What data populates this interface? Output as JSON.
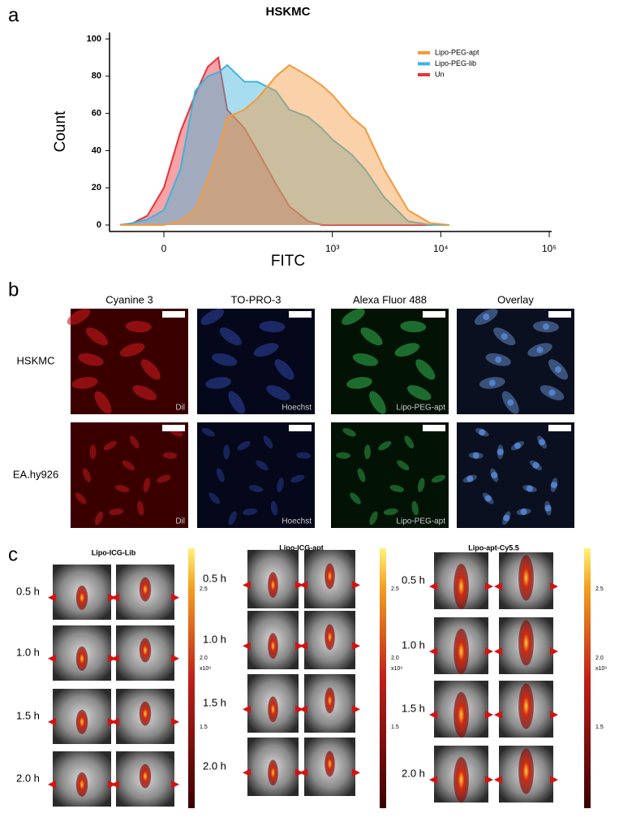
{
  "chart_data": {
    "type": "area",
    "panel_label": "a",
    "title": "HSKMC",
    "x_label": "FITC",
    "y_label": "Count",
    "xscale": "logicle",
    "x": [
      -60,
      -40,
      -20,
      0,
      20,
      40,
      60,
      80,
      100,
      150,
      200,
      300,
      400,
      600,
      800,
      1000,
      1500,
      2000,
      3000,
      5000,
      8000,
      12000
    ],
    "series": [
      {
        "name": "Lipo-PEG-apt",
        "color": "#f39a3d",
        "values": [
          0,
          0,
          0,
          0,
          2,
          8,
          25,
          40,
          58,
          62,
          68,
          80,
          86,
          80,
          75,
          70,
          58,
          52,
          30,
          8,
          1,
          0
        ]
      },
      {
        "name": "Lipo-PEG-lib",
        "color": "#3fb3dc",
        "values": [
          0,
          1,
          3,
          8,
          30,
          72,
          80,
          82,
          86,
          77,
          77,
          72,
          62,
          58,
          52,
          46,
          38,
          30,
          15,
          2,
          0,
          0
        ]
      },
      {
        "name": "Un",
        "color": "#e8333a",
        "values": [
          0,
          1,
          5,
          20,
          50,
          70,
          85,
          90,
          62,
          52,
          40,
          22,
          10,
          2,
          0,
          0,
          0,
          0,
          0,
          0,
          0,
          0
        ]
      }
    ],
    "xlim": [
      -80,
      100000
    ],
    "ylim": [
      0,
      100
    ],
    "xticks": [
      0,
      {
        "value": 1000,
        "label": "10³"
      },
      {
        "value": 10000,
        "label": "10⁴"
      },
      {
        "value": 100000,
        "label": "10⁵"
      }
    ],
    "yticks": [
      0,
      20,
      40,
      60,
      80,
      100
    ],
    "legend": "upper right"
  },
  "panel_b": {
    "panel_label": "b",
    "columns": [
      "Cyanine 3",
      "TO-PRO-3",
      "Alexa Fluor 488",
      "Overlay"
    ],
    "rows": [
      "HSKMC",
      "EA.hy926"
    ],
    "captions": [
      "Dil",
      "Hoechst",
      "Lipo-PEG-apt"
    ]
  },
  "panel_c": {
    "panel_label": "c",
    "groups": [
      {
        "title": "Lipo-ICG-Lib",
        "times": [
          "0.5 h",
          "1.0 h",
          "1.5 h",
          "2.0 h"
        ],
        "colorbar": [
          "2.5",
          "2.0",
          "1.5"
        ],
        "unit": "x10⁹"
      },
      {
        "title": "Lipo-ICG-apt",
        "times": [
          "0.5 h",
          "1.0 h",
          "1.5 h",
          "2.0 h"
        ],
        "colorbar": [
          "2.5",
          "2.0",
          "1.5"
        ],
        "unit": "x10⁹"
      },
      {
        "title": "Lipo-apt-Cy5.5",
        "times": [
          "0.5 h",
          "1.0 h",
          "1.5 h",
          "2.0 h"
        ],
        "colorbar": [
          "2.5",
          "2.0",
          "1.5"
        ],
        "unit": "x10⁹"
      }
    ]
  }
}
